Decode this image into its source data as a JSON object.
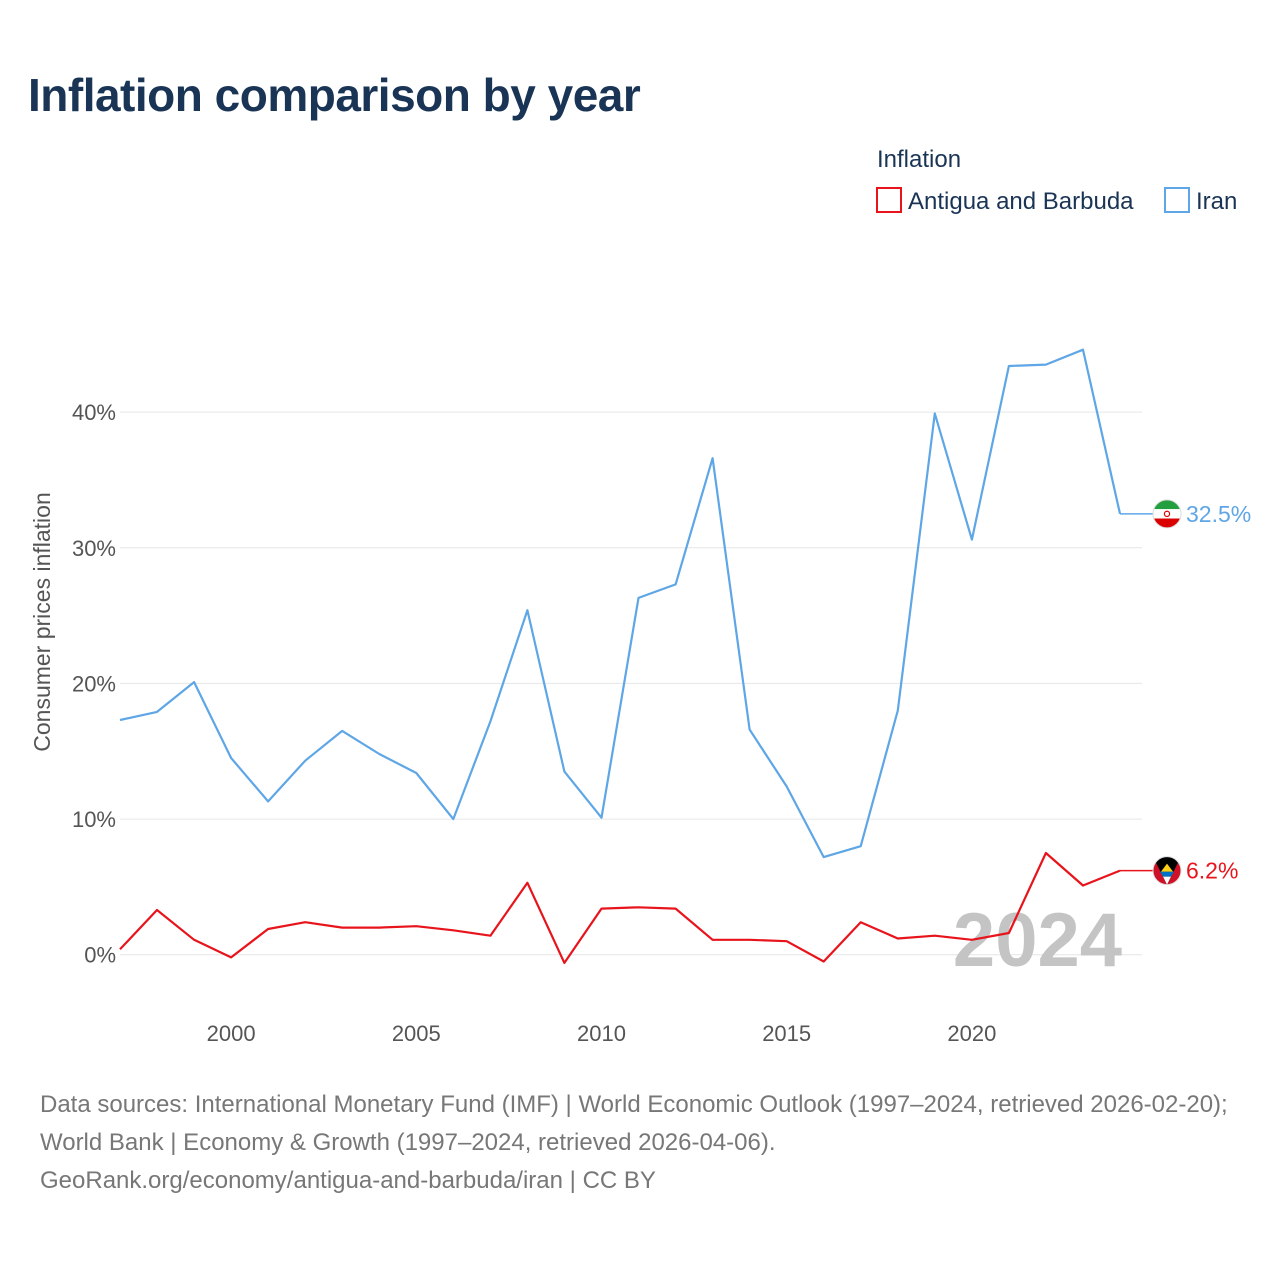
{
  "page": {
    "title": "Inflation comparison by year",
    "source_line_1": "Data sources: International Monetary Fund (IMF) | World Economic Outlook (1997–2024, retrieved 2026-02-20); World Bank | Economy & Growth (1997–2024, retrieved 2026-04-06).",
    "source_line_2": "GeoRank.org/economy/antigua-and-barbuda/iran | CC BY"
  },
  "chart_data": {
    "type": "line",
    "title": "Inflation comparison by year",
    "xlabel": "",
    "ylabel": "Consumer prices inflation",
    "legend_title": "Inflation",
    "legend_position": "top-right",
    "watermark_year": "2024",
    "x": [
      1997,
      1998,
      1999,
      2000,
      2001,
      2002,
      2003,
      2004,
      2005,
      2006,
      2007,
      2008,
      2009,
      2010,
      2011,
      2012,
      2013,
      2014,
      2015,
      2016,
      2017,
      2018,
      2019,
      2020,
      2021,
      2022,
      2023,
      2024
    ],
    "xlim": [
      1997,
      2024
    ],
    "ylim": [
      -4,
      49
    ],
    "x_ticks": [
      2000,
      2005,
      2010,
      2015,
      2020
    ],
    "y_ticks": [
      0,
      10,
      20,
      30,
      40
    ],
    "y_tick_labels": [
      "0%",
      "10%",
      "20%",
      "30%",
      "40%"
    ],
    "grid": true,
    "series": [
      {
        "name": "Antigua and Barbuda",
        "color": "#e8141c",
        "flag_icon": "antigua-and-barbuda-flag-icon",
        "end_label": "6.2%",
        "values": [
          0.4,
          3.3,
          1.1,
          -0.2,
          1.9,
          2.4,
          2.0,
          2.0,
          2.1,
          1.8,
          1.4,
          5.3,
          -0.6,
          3.4,
          3.5,
          3.4,
          1.1,
          1.1,
          1.0,
          -0.5,
          2.4,
          1.2,
          1.4,
          1.1,
          1.6,
          7.5,
          5.1,
          6.2
        ]
      },
      {
        "name": "Iran",
        "color": "#5ea6e6",
        "flag_icon": "iran-flag-icon",
        "end_label": "32.5%",
        "values": [
          17.3,
          17.9,
          20.1,
          14.5,
          11.3,
          14.3,
          16.5,
          14.8,
          13.4,
          10.0,
          17.2,
          25.4,
          13.5,
          10.1,
          26.3,
          27.3,
          36.6,
          16.6,
          12.4,
          7.2,
          8.0,
          18.0,
          39.9,
          30.6,
          43.4,
          43.5,
          44.6,
          32.5
        ]
      }
    ]
  }
}
